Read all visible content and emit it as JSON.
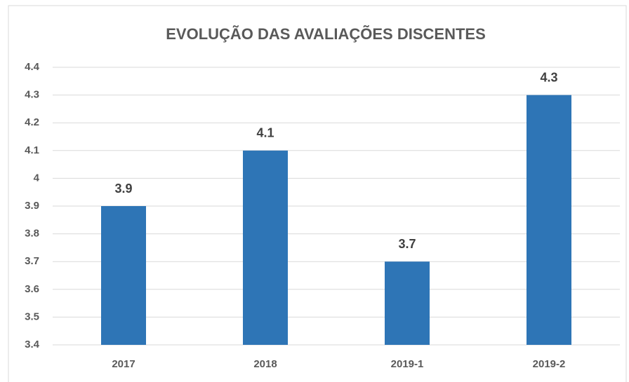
{
  "chart_data": {
    "type": "bar",
    "title": "EVOLUÇÃO DAS AVALIAÇÕES DISCENTES",
    "categories": [
      "2017",
      "2018",
      "2019-1",
      "2019-2"
    ],
    "values": [
      3.9,
      4.1,
      3.7,
      4.3
    ],
    "color": "#2e75b6",
    "ylim": [
      3.4,
      4.4
    ],
    "yticks": [
      3.4,
      3.5,
      3.6,
      3.7,
      3.8,
      3.9,
      4,
      4.1,
      4.2,
      4.3,
      4.4
    ],
    "grid": true
  }
}
